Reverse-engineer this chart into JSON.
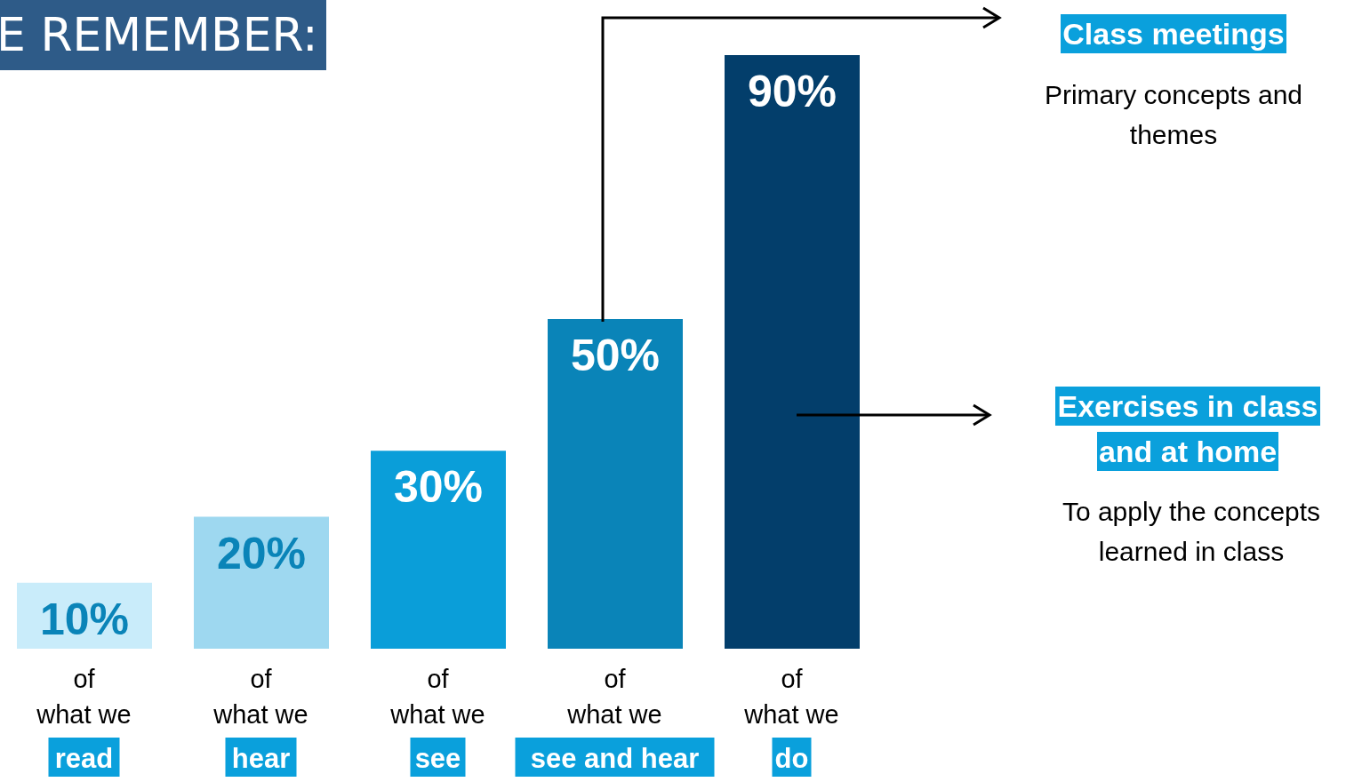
{
  "chart_data": {
    "type": "bar",
    "title": "E REMEMBER:",
    "categories": [
      "of\nwhat we\nread",
      "of\nwhat we\nhear",
      "of\nwhat we\nsee",
      "of\nwhat we\nsee and hear",
      "of\nwhat we\ndo"
    ],
    "values": [
      10,
      20,
      30,
      50,
      90
    ],
    "colors": [
      "#c9ecfa",
      "#9ed8f0",
      "#0a9ed9",
      "#0a84b8",
      "#033e6b"
    ],
    "data_labels": true,
    "value_labels": [
      "10%",
      "20%",
      "30%",
      "50%",
      "90%"
    ],
    "annotations": [
      "Class meetings",
      "Primary concepts and themes",
      "Exercises in class and at home",
      "To apply the concepts learned in class"
    ]
  }
}
